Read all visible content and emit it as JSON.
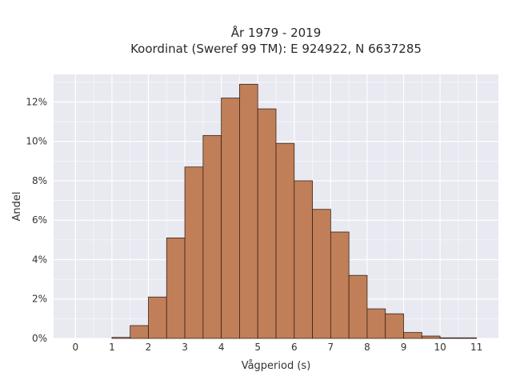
{
  "chart_data": {
    "type": "bar",
    "title": "År 1979 - 2019",
    "subtitle": "Koordinat (Sweref 99 TM): E 924922, N 6637285",
    "xlabel": "Vågperiod (s)",
    "ylabel": "Andel",
    "bin_width": 0.5,
    "bins_start": [
      1.0,
      1.5,
      2.0,
      2.5,
      3.0,
      3.5,
      4.0,
      4.5,
      5.0,
      5.5,
      6.0,
      6.5,
      7.0,
      7.5,
      8.0,
      8.5,
      9.0,
      9.5,
      10.0,
      10.5
    ],
    "values": [
      0.05,
      0.65,
      2.1,
      5.1,
      8.7,
      10.3,
      12.2,
      12.9,
      11.65,
      9.9,
      8.0,
      6.55,
      5.4,
      3.2,
      1.5,
      1.25,
      0.3,
      0.12,
      0.03,
      0.03
    ],
    "xlim": [
      -0.6,
      11.6
    ],
    "ylim": [
      0,
      13.4
    ],
    "x_ticks": [
      "0",
      "1",
      "2",
      "3",
      "4",
      "5",
      "6",
      "7",
      "8",
      "9",
      "10",
      "11"
    ],
    "y_ticks": [
      "0%",
      "2%",
      "4%",
      "6%",
      "8%",
      "10%",
      "12%"
    ],
    "grid": true,
    "bar_color": "#c07f58",
    "bar_edge_color": "#3a2318",
    "background_color": "#e8e9f1",
    "grid_color": "#ffffff"
  }
}
